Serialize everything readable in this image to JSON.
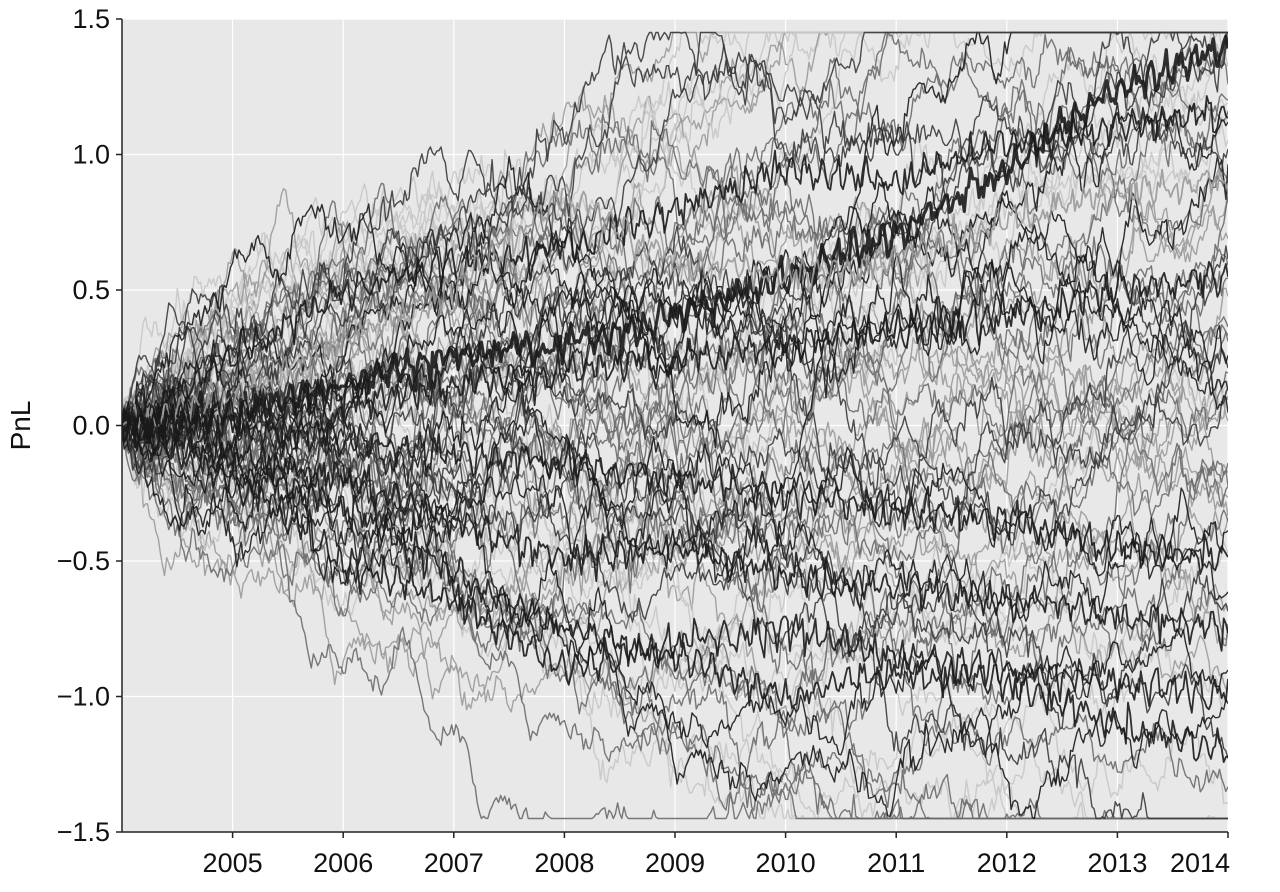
{
  "chart_data": {
    "type": "line",
    "title": "",
    "xlabel": "",
    "ylabel": "PnL",
    "x_range": [
      2004.0,
      2014.0
    ],
    "ylim": [
      -1.5,
      1.5
    ],
    "x_ticks": [
      2005,
      2006,
      2007,
      2008,
      2009,
      2010,
      2011,
      2012,
      2013,
      2014
    ],
    "x_tick_labels": [
      "2005",
      "2006",
      "2007",
      "2008",
      "2009",
      "2010",
      "2011",
      "2012",
      "2013",
      "2014"
    ],
    "y_ticks": [
      -1.5,
      -1.0,
      -0.5,
      0.0,
      0.5,
      1.0,
      1.5
    ],
    "y_tick_labels": [
      "−1.5",
      "−1.0",
      "−0.5",
      "0.0",
      "0.5",
      "1.0",
      "1.5"
    ],
    "grid": true,
    "legend": "none",
    "background_color": "#e8e8e8",
    "grid_color": "#ffffff",
    "series_count": 80,
    "series_colors": [
      "#1a1a1a",
      "#3a3a3a",
      "#6a6a6a",
      "#9a9a9a",
      "#c6c6c6"
    ],
    "series": [
      {
        "x": [
          2004.0,
          2005.0,
          2006.0,
          2007.0,
          2008.0,
          2009.0,
          2010.0,
          2011.0,
          2012.0,
          2013.0,
          2014.0
        ],
        "values": [
          0.0,
          0.05,
          0.15,
          0.25,
          0.3,
          0.4,
          0.55,
          0.7,
          0.95,
          1.25,
          1.4
        ]
      },
      {
        "x": [
          2004.0,
          2005.0,
          2006.0,
          2007.0,
          2008.0,
          2009.0,
          2010.0,
          2011.0,
          2012.0,
          2013.0,
          2014.0
        ],
        "values": [
          0.0,
          0.25,
          0.5,
          0.6,
          0.65,
          0.8,
          0.95,
          0.9,
          1.05,
          1.1,
          1.15
        ]
      },
      {
        "x": [
          2004.0,
          2005.0,
          2006.0,
          2007.0,
          2008.0,
          2009.0,
          2010.0,
          2011.0,
          2012.0,
          2013.0,
          2014.0
        ],
        "values": [
          0.0,
          0.1,
          0.3,
          0.5,
          0.85,
          0.6,
          0.55,
          0.6,
          0.75,
          0.85,
          0.9
        ]
      },
      {
        "x": [
          2004.0,
          2005.0,
          2006.0,
          2007.0,
          2008.0,
          2009.0,
          2010.0,
          2011.0,
          2012.0,
          2013.0,
          2014.0
        ],
        "values": [
          0.0,
          -0.15,
          -0.3,
          -0.55,
          -0.75,
          -0.85,
          -1.0,
          -0.9,
          -0.95,
          -1.1,
          -1.2
        ]
      },
      {
        "x": [
          2004.0,
          2005.0,
          2006.0,
          2007.0,
          2008.0,
          2009.0,
          2010.0,
          2011.0,
          2012.0,
          2013.0,
          2014.0
        ],
        "values": [
          0.0,
          -0.2,
          -0.5,
          -0.65,
          -0.9,
          -0.8,
          -0.75,
          -0.85,
          -0.9,
          -0.95,
          -1.0
        ]
      },
      {
        "x": [
          2004.0,
          2005.0,
          2006.0,
          2007.0,
          2008.0,
          2009.0,
          2010.0,
          2011.0,
          2012.0,
          2013.0,
          2014.0
        ],
        "values": [
          0.0,
          -0.1,
          -0.2,
          -0.35,
          -0.5,
          -0.45,
          -0.55,
          -0.6,
          -0.65,
          -0.7,
          -0.75
        ]
      },
      {
        "x": [
          2004.0,
          2005.0,
          2006.0,
          2007.0,
          2008.0,
          2009.0,
          2010.0,
          2011.0,
          2012.0,
          2013.0,
          2014.0
        ],
        "values": [
          0.0,
          0.05,
          0.1,
          0.15,
          0.2,
          0.25,
          0.3,
          0.35,
          0.4,
          0.5,
          0.55
        ]
      },
      {
        "x": [
          2004.0,
          2005.0,
          2006.0,
          2007.0,
          2008.0,
          2009.0,
          2010.0,
          2011.0,
          2012.0,
          2013.0,
          2014.0
        ],
        "values": [
          0.0,
          0.0,
          -0.05,
          -0.1,
          -0.15,
          -0.2,
          -0.25,
          -0.3,
          -0.35,
          -0.45,
          -0.5
        ]
      }
    ]
  }
}
